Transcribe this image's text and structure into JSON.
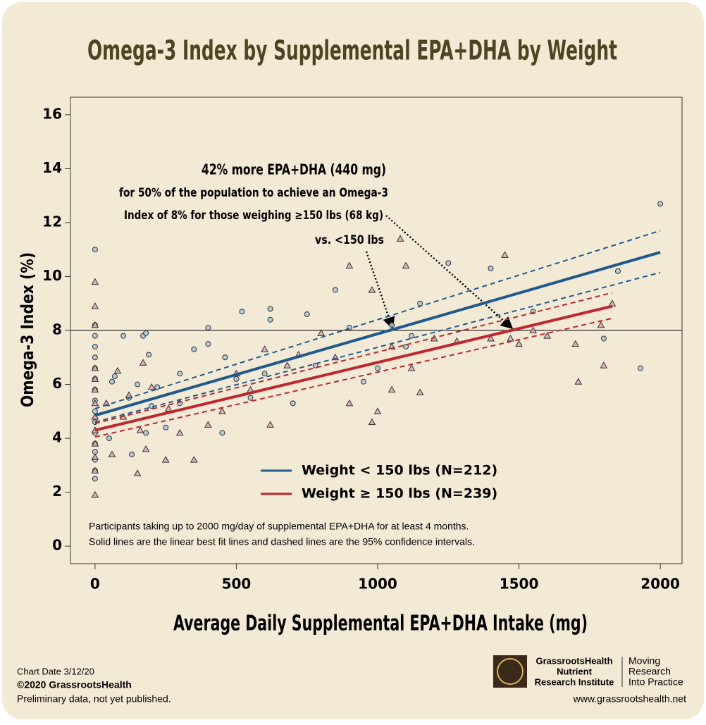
{
  "chart_data": {
    "type": "scatter",
    "title": "Omega-3 Index by Supplemental EPA+DHA by Weight",
    "x_label": "Average Daily Supplemental EPA+DHA Intake (mg)",
    "y_label": "Omega-3 Index (%)",
    "xlim": [
      -87,
      2077
    ],
    "ylim": [
      -0.65,
      16.65
    ],
    "xticks": [
      0,
      500,
      1000,
      1500,
      2000
    ],
    "yticks": [
      0,
      2,
      4,
      6,
      8,
      10,
      12,
      14,
      16
    ],
    "hline": 8,
    "annotation": [
      "42% more EPA+DHA (440 mg)",
      "for 50% of the population to achieve an Omega-3",
      "Index of 8% for those weighing ≥150 lbs (68 kg)",
      "vs. <150 lbs"
    ],
    "notes": [
      "Participants taking up to 2000 mg/day of supplemental EPA+DHA for at least 4 months.",
      "Solid lines are the linear best fit lines and dashed lines are the 95% confidence intervals."
    ],
    "series": [
      {
        "name": "Weight < 150 lbs (N=212)",
        "color": "#1f5a8f",
        "marker": "circle",
        "marker_fill": "#a9c4d6",
        "x": [
          0,
          0,
          0,
          0,
          0,
          0,
          0,
          0,
          0,
          0,
          0,
          0,
          0,
          0,
          0,
          0,
          0,
          50,
          60,
          70,
          100,
          120,
          150,
          170,
          180,
          190,
          200,
          220,
          250,
          300,
          350,
          400,
          400,
          450,
          460,
          500,
          520,
          550,
          600,
          620,
          620,
          700,
          750,
          780,
          850,
          900,
          950,
          1000,
          1050,
          1100,
          1120,
          1250,
          1400,
          1550,
          1800,
          1850,
          1930,
          2000,
          1150,
          180,
          130,
          300
        ],
        "values": [
          2.5,
          2.8,
          3.2,
          3.5,
          3.8,
          4.2,
          4.6,
          5.0,
          5.4,
          5.8,
          6.2,
          6.6,
          7.0,
          7.4,
          7.8,
          8.2,
          11.0,
          4.0,
          6.1,
          6.3,
          7.8,
          5.5,
          6.0,
          7.8,
          7.9,
          7.1,
          5.2,
          5.9,
          4.4,
          6.4,
          7.3,
          8.1,
          7.5,
          4.2,
          7.0,
          6.2,
          8.7,
          5.5,
          6.4,
          8.8,
          8.4,
          5.3,
          8.6,
          6.7,
          9.5,
          8.1,
          6.1,
          6.6,
          8.2,
          7.4,
          7.8,
          10.5,
          10.3,
          8.7,
          7.7,
          10.2,
          6.6,
          12.7,
          9.0,
          4.2,
          3.4,
          5.3
        ],
        "fit": {
          "x": [
            0,
            2000
          ],
          "values": [
            4.85,
            10.9
          ],
          "upper": [
            5.1,
            11.7
          ],
          "lower": [
            4.6,
            10.15
          ]
        }
      },
      {
        "name": "Weight ≥ 150 lbs (N=239)",
        "color": "#c0262d",
        "marker": "triangle",
        "marker_fill": "#d9a9b2",
        "x": [
          0,
          0,
          0,
          0,
          0,
          0,
          0,
          0,
          0,
          0,
          0,
          0,
          0,
          40,
          60,
          80,
          100,
          150,
          170,
          180,
          200,
          250,
          260,
          300,
          350,
          400,
          450,
          500,
          550,
          600,
          620,
          680,
          720,
          800,
          850,
          900,
          900,
          980,
          980,
          1000,
          1050,
          1050,
          1080,
          1100,
          1120,
          1150,
          1200,
          1280,
          1400,
          1450,
          1470,
          1500,
          1550,
          1600,
          1700,
          1710,
          1790,
          1800,
          1830,
          160,
          120
        ],
        "values": [
          1.9,
          2.8,
          3.3,
          3.8,
          4.3,
          4.8,
          5.3,
          5.8,
          6.2,
          6.6,
          8.2,
          8.9,
          9.8,
          5.3,
          3.4,
          6.5,
          4.8,
          2.7,
          6.8,
          3.6,
          5.9,
          3.2,
          5.1,
          4.2,
          3.2,
          4.5,
          5.0,
          6.4,
          5.8,
          7.3,
          4.5,
          6.7,
          7.1,
          7.9,
          7.0,
          10.4,
          5.3,
          9.5,
          4.6,
          5.0,
          5.8,
          7.4,
          11.4,
          10.4,
          6.6,
          5.7,
          7.7,
          7.6,
          7.7,
          10.8,
          7.7,
          7.5,
          8.0,
          7.8,
          7.5,
          6.1,
          8.2,
          6.7,
          9.0,
          4.3,
          5.6
        ],
        "fit": {
          "x": [
            0,
            1830
          ],
          "values": [
            4.3,
            8.9
          ],
          "upper": [
            4.55,
            9.4
          ],
          "lower": [
            4.05,
            8.45
          ]
        }
      }
    ],
    "footer": {
      "date": "Chart Date 3/12/20",
      "copyright": "©2020 GrassrootsHealth",
      "status": "Preliminary data, not yet published.",
      "org": [
        "GrassrootsHealth",
        "Nutrient",
        "Research Institute"
      ],
      "tagline": [
        "Moving",
        "Research",
        "Into Practice"
      ],
      "url": "www.grassrootshealth.net"
    }
  }
}
